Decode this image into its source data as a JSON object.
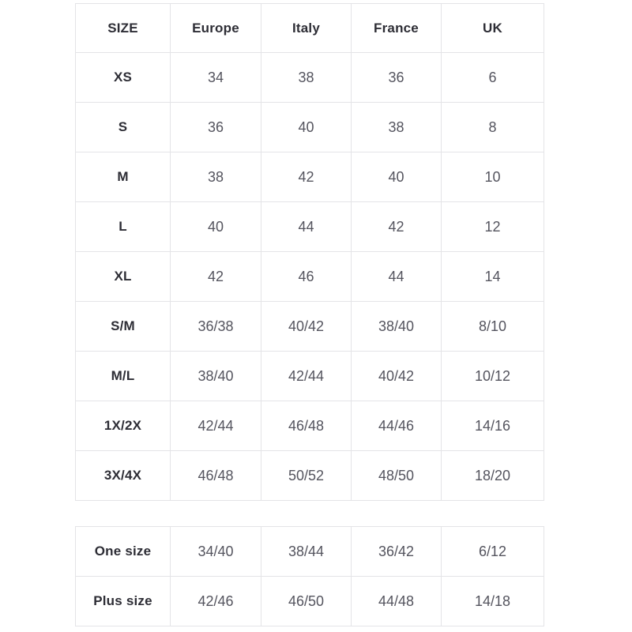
{
  "colors": {
    "background": "#ffffff",
    "border": "#e4e4e7",
    "heading_text": "#2d2d35",
    "value_text": "#54545e"
  },
  "main_table": {
    "headers": [
      "SIZE",
      "Europe",
      "Italy",
      "France",
      "UK"
    ],
    "rows": [
      {
        "size": "XS",
        "values": [
          "34",
          "38",
          "36",
          "6"
        ]
      },
      {
        "size": "S",
        "values": [
          "36",
          "40",
          "38",
          "8"
        ]
      },
      {
        "size": "M",
        "values": [
          "38",
          "42",
          "40",
          "10"
        ]
      },
      {
        "size": "L",
        "values": [
          "40",
          "44",
          "42",
          "12"
        ]
      },
      {
        "size": "XL",
        "values": [
          "42",
          "46",
          "44",
          "14"
        ]
      },
      {
        "size": "S/M",
        "values": [
          "36/38",
          "40/42",
          "38/40",
          "8/10"
        ]
      },
      {
        "size": "M/L",
        "values": [
          "38/40",
          "42/44",
          "40/42",
          "10/12"
        ]
      },
      {
        "size": "1X/2X",
        "values": [
          "42/44",
          "46/48",
          "44/46",
          "14/16"
        ]
      },
      {
        "size": "3X/4X",
        "values": [
          "46/48",
          "50/52",
          "48/50",
          "18/20"
        ]
      }
    ]
  },
  "special_table": {
    "rows": [
      {
        "size": "One size",
        "values": [
          "34/40",
          "38/44",
          "36/42",
          "6/12"
        ]
      },
      {
        "size": "Plus size",
        "values": [
          "42/46",
          "46/50",
          "44/48",
          "14/18"
        ]
      }
    ]
  }
}
